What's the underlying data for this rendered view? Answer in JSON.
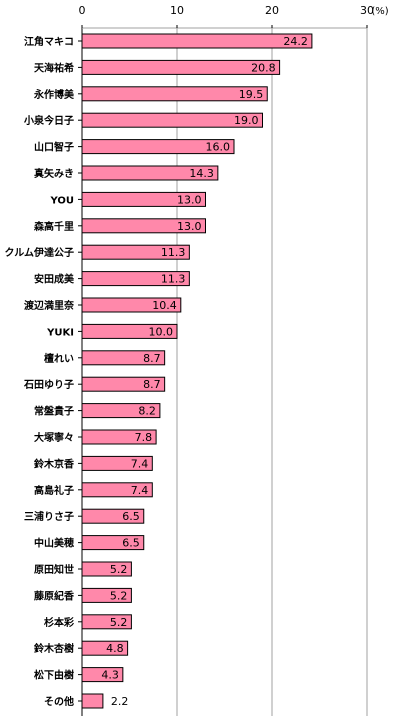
{
  "chart_data": {
    "type": "bar",
    "orientation": "horizontal",
    "unit": "(%)",
    "xlim": [
      0,
      30
    ],
    "ticks": [
      "0",
      "10",
      "20",
      "30"
    ],
    "grid": true,
    "bar_color": "#ff88aa",
    "categories": [
      "江角マキコ",
      "天海祐希",
      "永作博美",
      "小泉今日子",
      "山口智子",
      "真矢みき",
      "YOU",
      "森高千里",
      "クルム伊達公子",
      "安田成美",
      "渡辺満里奈",
      "YUKI",
      "檀れい",
      "石田ゆり子",
      "常盤貴子",
      "大塚寧々",
      "鈴木京香",
      "高島礼子",
      "三浦りさ子",
      "中山美穂",
      "原田知世",
      "藤原紀香",
      "杉本彩",
      "鈴木杏樹",
      "松下由樹",
      "その他"
    ],
    "values": [
      24.2,
      20.8,
      19.5,
      19.0,
      16.0,
      14.3,
      13.0,
      13.0,
      11.3,
      11.3,
      10.4,
      10.0,
      8.7,
      8.7,
      8.2,
      7.8,
      7.4,
      7.4,
      6.5,
      6.5,
      5.2,
      5.2,
      5.2,
      4.8,
      4.3,
      2.2
    ],
    "value_labels": [
      "24.2",
      "20.8",
      "19.5",
      "19.0",
      "16.0",
      "14.3",
      "13.0",
      "13.0",
      "11.3",
      "11.3",
      "10.4",
      "10.0",
      "8.7",
      "8.7",
      "8.2",
      "7.8",
      "7.4",
      "7.4",
      "6.5",
      "6.5",
      "5.2",
      "5.2",
      "5.2",
      "4.8",
      "4.3",
      "2.2"
    ]
  }
}
